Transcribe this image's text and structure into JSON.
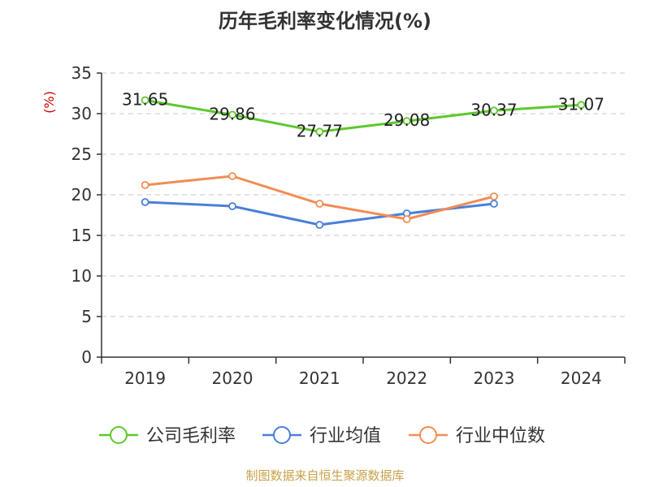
{
  "chart_data": {
    "type": "line",
    "title": "历年毛利率变化情况(%)",
    "ylabel": "(%)",
    "xlabel": "",
    "categories": [
      "2019",
      "2020",
      "2021",
      "2022",
      "2023",
      "2024"
    ],
    "ylim": [
      0,
      35
    ],
    "yticks": [
      0,
      5,
      10,
      15,
      20,
      25,
      30,
      35
    ],
    "grid": true,
    "legend_position": "bottom",
    "series": [
      {
        "name": "公司毛利率",
        "color": "#5ec82e",
        "values": [
          31.65,
          29.86,
          27.77,
          29.08,
          30.37,
          31.07
        ],
        "labels": [
          "31.65",
          "29.86",
          "27.77",
          "29.08",
          "30.37",
          "31.07"
        ]
      },
      {
        "name": "行业均值",
        "color": "#4a7fd8",
        "values": [
          19.1,
          18.6,
          16.3,
          17.7,
          18.9,
          null
        ]
      },
      {
        "name": "行业中位数",
        "color": "#f28c54",
        "values": [
          21.2,
          22.3,
          18.9,
          17.0,
          19.8,
          null
        ]
      }
    ],
    "source": "制图数据来自恒生聚源数据库"
  }
}
